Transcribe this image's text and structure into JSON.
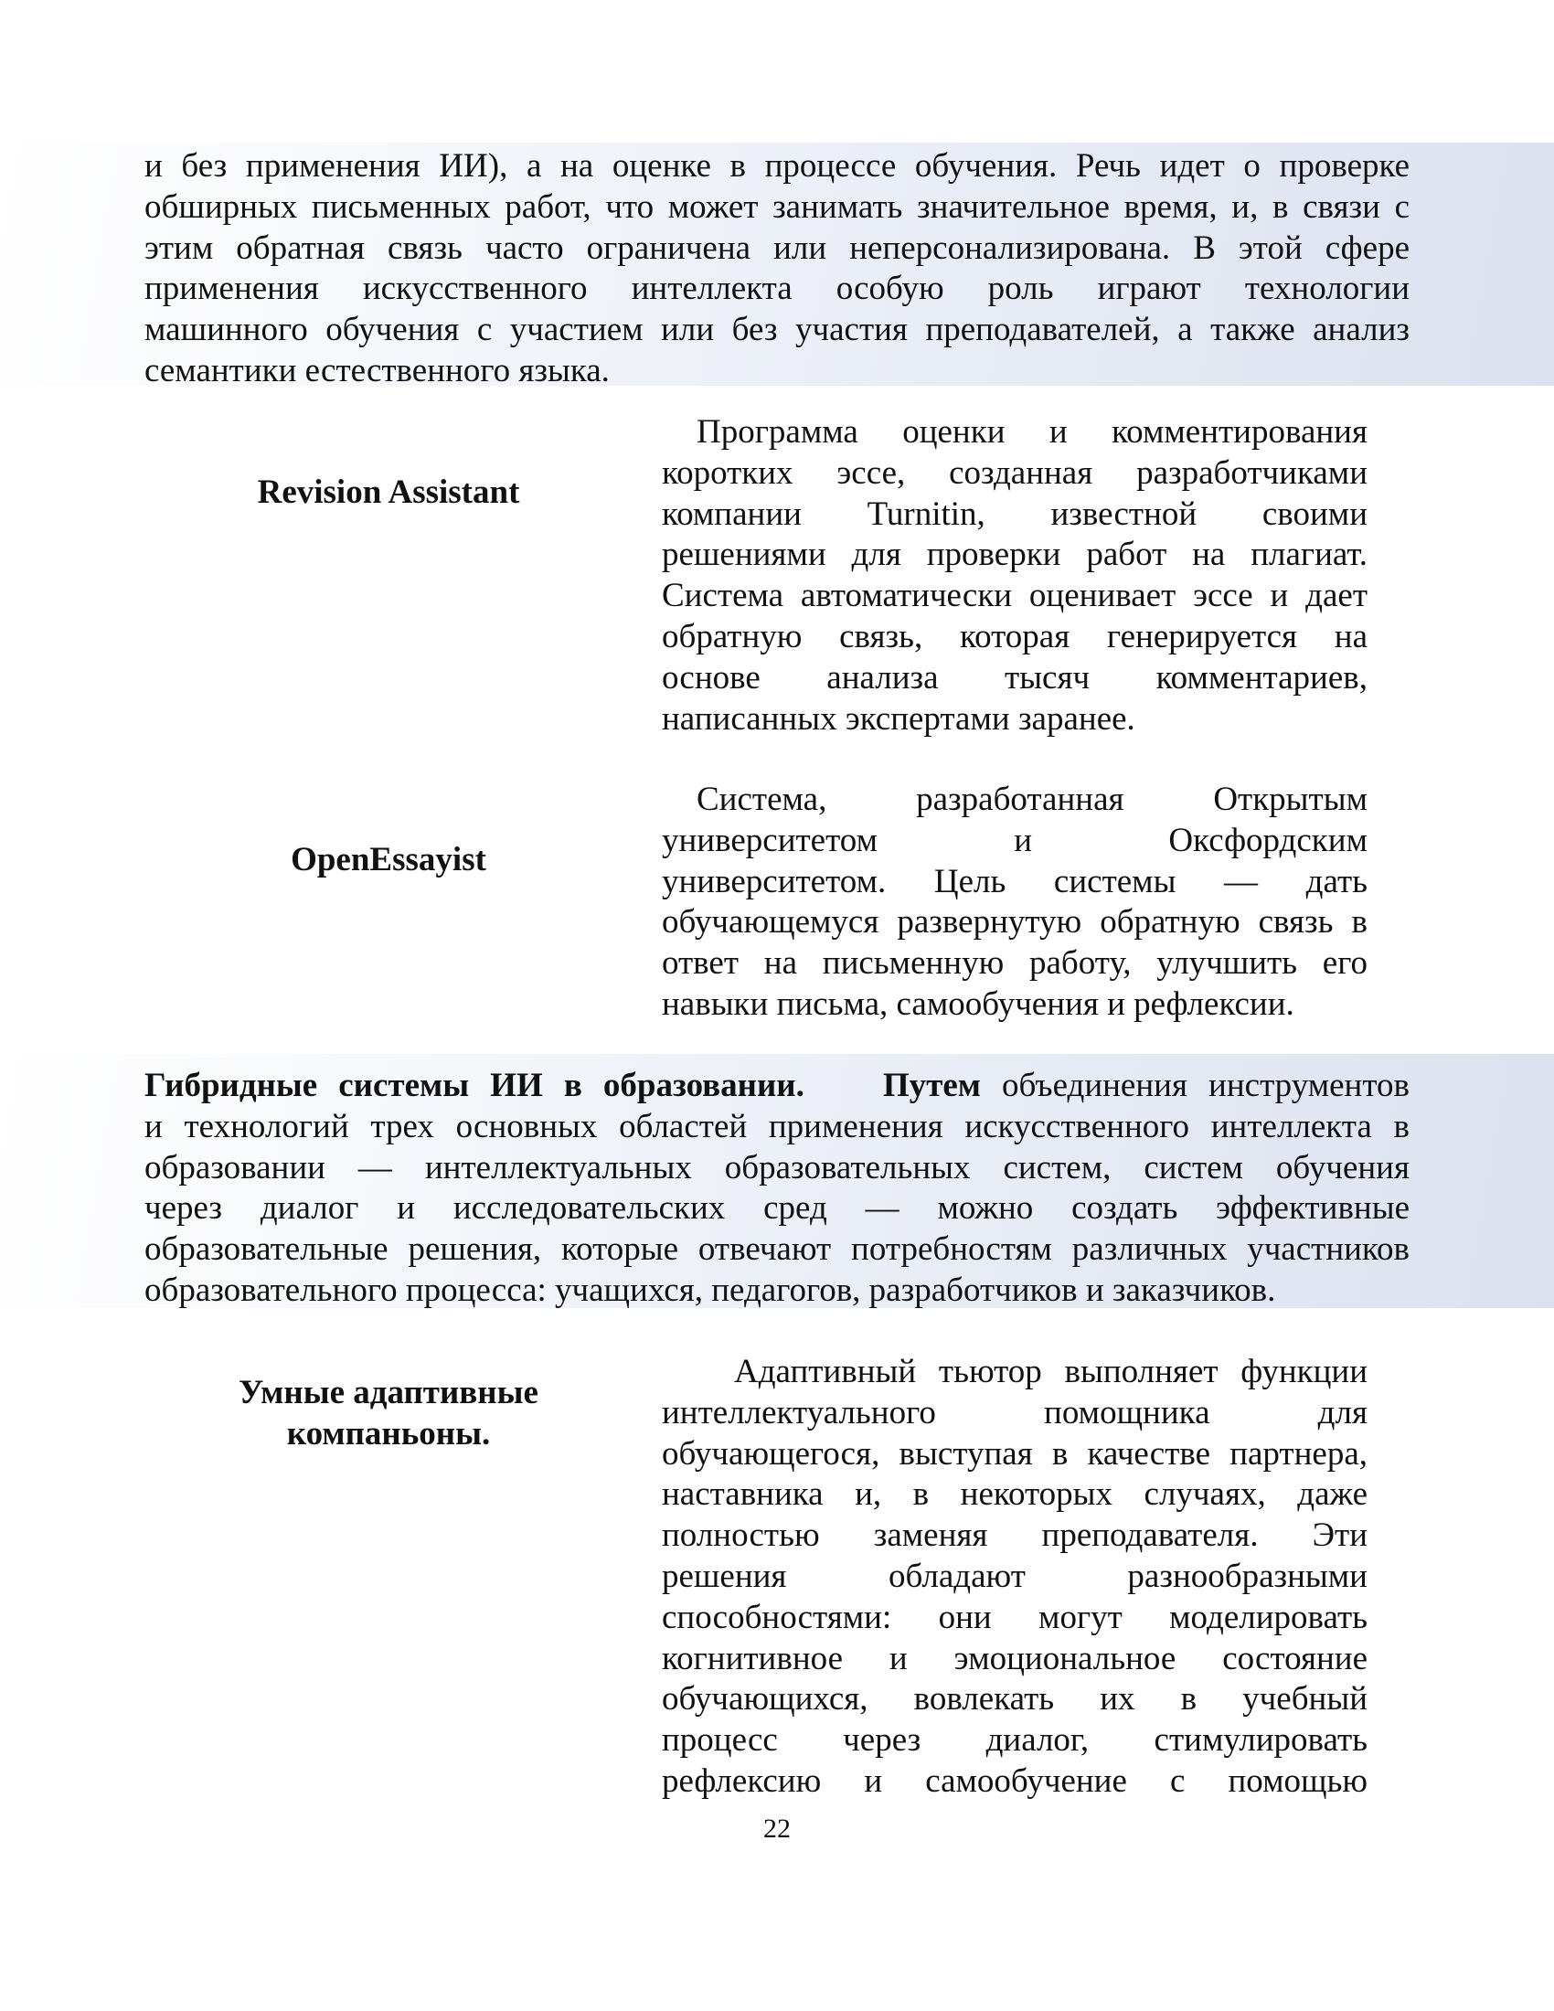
{
  "intro_paragraph": [
    "и без применения ИИ), а на оценке в процессе обучения. Речь идет о проверке",
    "обширных письменных работ, что может занимать значительное время, и, в связи с",
    "этим обратная связь часто ограничена или неперсонализирована. В этой сфере",
    "применения искусственного интеллекта особую роль играют технологии",
    "машинного обучения с участием или без участия преподавателей, а также анализ",
    "семантики естественного языка."
  ],
  "revision_assistant": {
    "label": "Revision Assistant",
    "lines": [
      "Программа оценки и комментирования",
      "коротких эссе, созданная разработчиками",
      "компании Turnitin, известной своими",
      "решениями для проверки работ на плагиат.",
      "Система автоматически оценивает эссе и дает",
      "обратную связь, которая генерируется на",
      "основе анализа тысяч комментариев,",
      "написанных экспертами заранее."
    ]
  },
  "open_essayist": {
    "label": "OpenEssayist",
    "lines": [
      "Система, разработанная Открытым",
      "университетом и Оксфордским",
      "университетом. Цель системы — дать",
      "обучающемуся развернутую обратную связь в",
      "ответ на письменную работу, улучшить его",
      "навыки письма, самообучения и рефлексии."
    ]
  },
  "hybrid": {
    "heading": "Гибридные системы ИИ в образовании.",
    "lead": "Путем",
    "first_line_rest": "объединения инструментов",
    "lines": [
      "и технологий трех основных областей применения искусственного интеллекта в",
      "образовании — интеллектуальных образовательных систем, систем обучения",
      "через диалог и исследовательских сред — можно создать эффективные",
      "образовательные решения, которые отвечают потребностям различных участников",
      "образовательного процесса: учащихся, педагогов, разработчиков и заказчиков."
    ]
  },
  "adaptive": {
    "label_line1": "Умные адаптивные",
    "label_line2": "компаньоны.",
    "lines": [
      "Адаптивный тьютор выполняет функции",
      "интеллектуального помощника для",
      "обучающегося, выступая в качестве партнера,",
      "наставника и, в некоторых случаях, даже",
      "полностью заменяя преподавателя. Эти",
      "решения обладают разнообразными",
      "способностями: они могут моделировать",
      "когнитивное и эмоциональное состояние",
      "обучающихся, вовлекать их в учебный",
      "процесс через диалог, стимулировать",
      "рефлексию и самообучение с помощью"
    ]
  },
  "page_number": "22",
  "colors": {
    "band_start": "#ffffff",
    "band_end": "#dbe1ef",
    "text": "#111111"
  }
}
